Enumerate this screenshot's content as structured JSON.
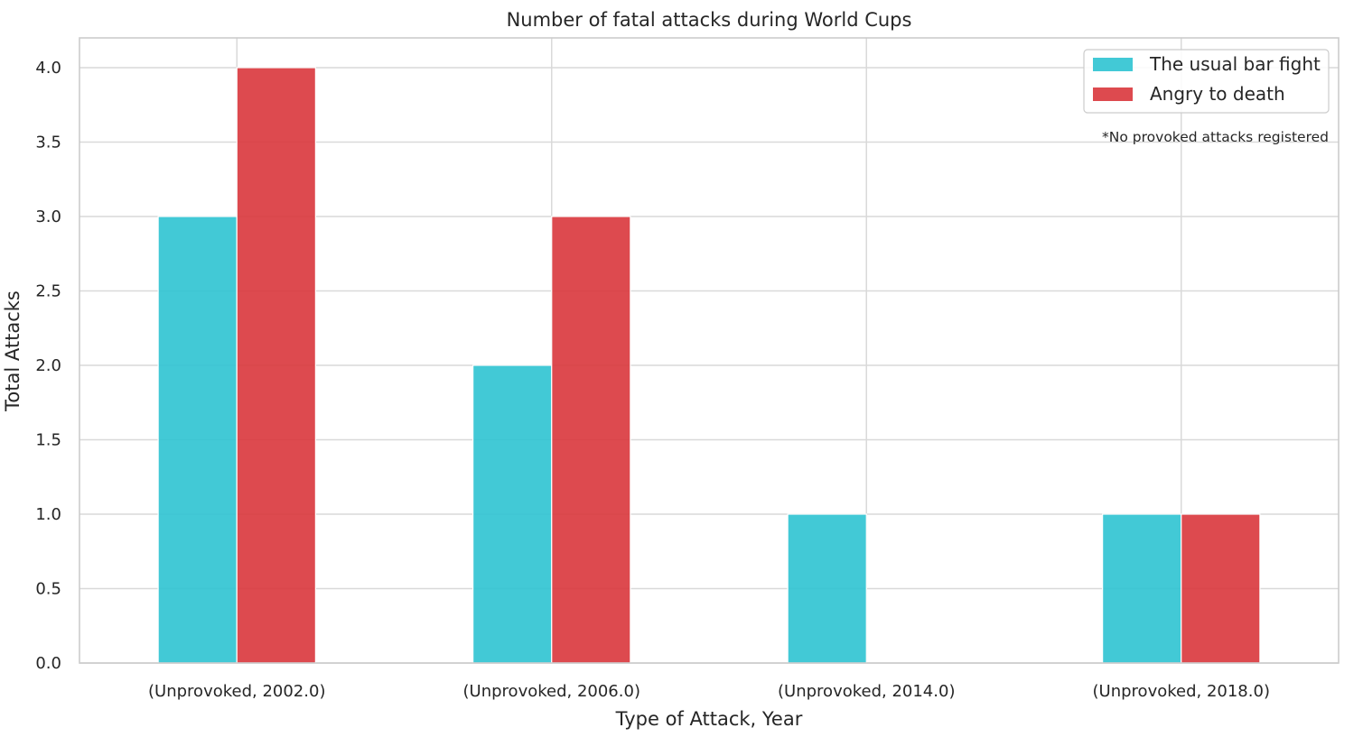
{
  "chart_data": {
    "type": "bar",
    "title": "Number of fatal attacks during World Cups",
    "xlabel": "Type of Attack, Year",
    "ylabel": "Total Attacks",
    "categories": [
      "(Unprovoked, 2002.0)",
      "(Unprovoked, 2006.0)",
      "(Unprovoked, 2014.0)",
      "(Unprovoked, 2018.0)"
    ],
    "series": [
      {
        "name": "The usual bar fight",
        "color": "#2dc3d2",
        "values": [
          3,
          2,
          1,
          1
        ]
      },
      {
        "name": "Angry to death",
        "color": "#d9363c",
        "values": [
          4,
          3,
          0,
          1
        ]
      }
    ],
    "ylim": [
      0,
      4.2
    ],
    "yticks": [
      "0.0",
      "0.5",
      "1.0",
      "1.5",
      "2.0",
      "2.5",
      "3.0",
      "3.5",
      "4.0"
    ],
    "grid": true,
    "legend": {
      "placement": "top-right"
    },
    "annotation": "*No provoked attacks registered"
  }
}
